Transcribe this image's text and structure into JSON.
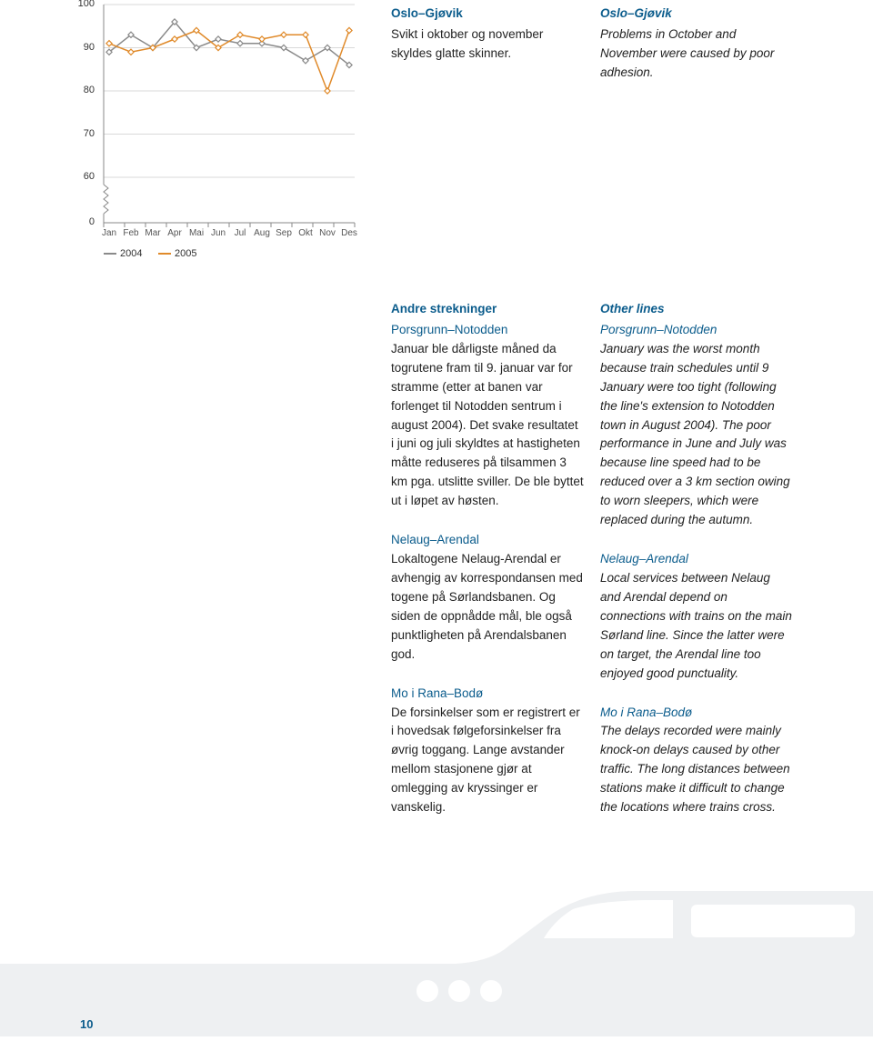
{
  "chart": {
    "type": "line",
    "y_ticks": [
      100,
      90,
      80,
      70,
      60,
      0
    ],
    "months": [
      "Jan",
      "Feb",
      "Mar",
      "Apr",
      "Mai",
      "Jun",
      "Jul",
      "Aug",
      "Sep",
      "Okt",
      "Nov",
      "Des"
    ],
    "legend": [
      {
        "label": "2004",
        "color": "#8a8a8a"
      },
      {
        "label": "2005",
        "color": "#e08a2a"
      }
    ],
    "series": {
      "2004": [
        89,
        93,
        90,
        96,
        90,
        92,
        91,
        91,
        90,
        87,
        90,
        86
      ],
      "2005": [
        91,
        89,
        90,
        92,
        94,
        90,
        93,
        92,
        93,
        93,
        80,
        94
      ]
    },
    "ylim": [
      55,
      102
    ],
    "xlim": [
      0,
      12
    ],
    "grid_color": "#d9d9d9",
    "colors": {
      "2004": "#8a8a8a",
      "2005": "#e08a2a"
    },
    "line_width": 1.5,
    "background_color": "#ffffff",
    "tick_font_size": 11,
    "x_break": true
  },
  "header": {
    "left": {
      "title": "Oslo–Gjøvik",
      "body": "Svikt i oktober og november skyldes glatte skinner."
    },
    "right": {
      "title": "Oslo–Gjøvik",
      "body": "Problems in October and November were caused by poor adhesion."
    }
  },
  "sections": {
    "left": {
      "heading": "Andre strekninger",
      "blocks": [
        {
          "sub": "Porsgrunn–Notodden",
          "body": "Januar ble dårligste måned da togrutene fram til 9. januar var for stramme (etter at banen var forlenget til Notodden sentrum i august 2004). Det svake resultatet i juni og juli skyldtes at hastigheten måtte reduseres på tilsammen 3 km pga. utslitte sviller. De ble byttet ut i løpet av høsten."
        },
        {
          "sub": "Nelaug–Arendal",
          "body": "Lokaltogene Nelaug-Arendal er avhengig av korrespondansen med togene på Sørlandsbanen. Og siden de oppnådde mål, ble også punktligheten på Arendalsbanen god."
        },
        {
          "sub": "Mo i Rana–Bodø",
          "body": "De forsinkelser som er registrert er i hovedsak følgeforsinkelser fra øvrig toggang. Lange avstander mellom stasjonene gjør at omlegging av kryssinger er vanskelig."
        }
      ]
    },
    "right": {
      "heading": "Other lines",
      "blocks": [
        {
          "sub": "Porsgrunn–Notodden",
          "body": "January was the worst month because train schedules until 9 January were too tight (following the line's extension to Notodden town in August 2004). The poor performance in June and July was because line speed had to be reduced over a 3 km section owing to worn sleepers, which were replaced during the autumn."
        },
        {
          "sub": "Nelaug–Arendal",
          "body": "Local services between Nelaug and Arendal depend on connections with trains on the main Sørland line. Since the latter were on target, the Arendal line too enjoyed good punctuality."
        },
        {
          "sub": "Mo i Rana–Bodø",
          "body": "The delays recorded were mainly knock-on delays caused by other traffic. The long distances between stations make it difficult to change the locations where trains cross."
        }
      ]
    }
  },
  "page_number": "10",
  "train_bg_color": "#eef0f2",
  "accent_color": "#0b5c8c"
}
